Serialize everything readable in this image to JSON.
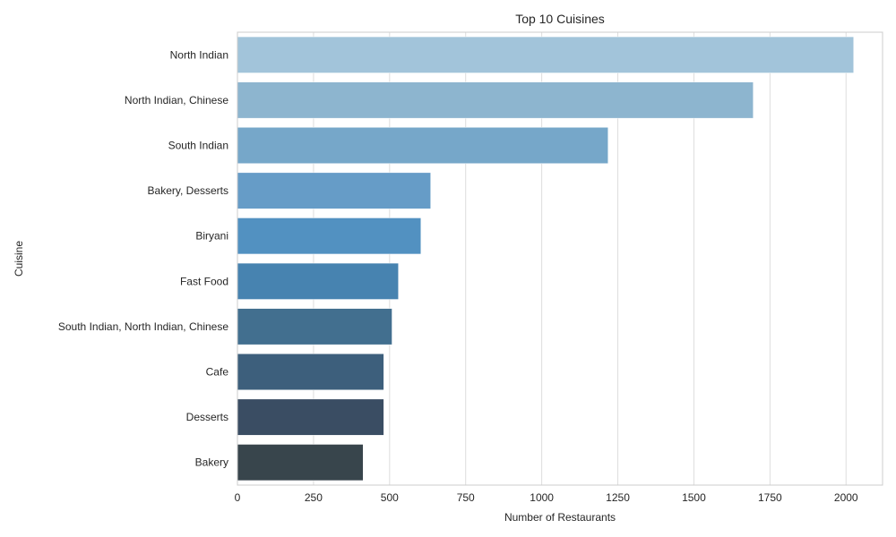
{
  "chart_data": {
    "type": "bar",
    "orientation": "horizontal",
    "title": "Top 10 Cuisines",
    "xlabel": "Number of Restaurants",
    "ylabel": "Cuisine",
    "categories": [
      "North Indian",
      "North Indian, Chinese",
      "South Indian",
      "Bakery, Desserts",
      "Biryani",
      "Fast Food",
      "South Indian, North Indian, Chinese",
      "Cafe",
      "Desserts",
      "Bakery"
    ],
    "values": [
      2025,
      1695,
      1218,
      635,
      603,
      529,
      508,
      481,
      481,
      413
    ],
    "xlim": [
      0,
      2120
    ],
    "xticks": [
      0,
      250,
      500,
      750,
      1000,
      1250,
      1500,
      1750,
      2000
    ],
    "grid": "x",
    "colors": [
      "#a2c4da",
      "#8db5cf",
      "#76a7c9",
      "#669cc7",
      "#5291c1",
      "#4783b0",
      "#426f8f",
      "#3d5f7c",
      "#3a4d63",
      "#38454c"
    ]
  }
}
